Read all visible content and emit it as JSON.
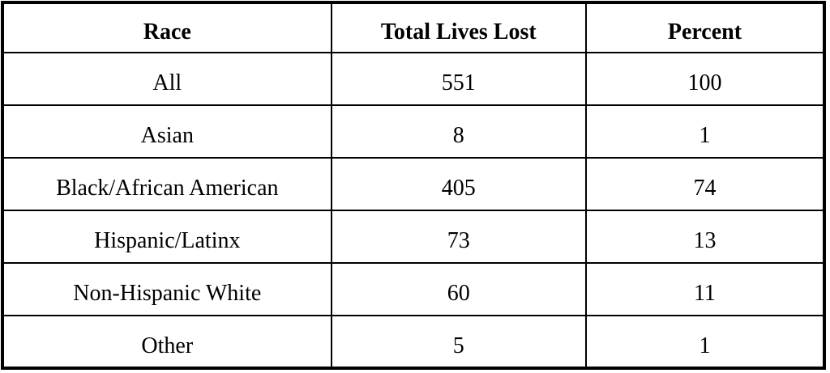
{
  "table": {
    "columns": [
      "Race",
      "Total Lives Lost",
      "Percent"
    ],
    "rows": [
      [
        "All",
        "551",
        "100"
      ],
      [
        "Asian",
        "8",
        "1"
      ],
      [
        "Black/African American",
        "405",
        "74"
      ],
      [
        "Hispanic/Latinx",
        "73",
        "13"
      ],
      [
        "Non-Hispanic White",
        "60",
        "11"
      ],
      [
        "Other",
        "5",
        "1"
      ]
    ]
  },
  "colors": {
    "border": "#000000",
    "background": "#ffffff",
    "text": "#000000"
  },
  "chart_data": {
    "type": "table",
    "title": "",
    "columns": [
      "Race",
      "Total Lives Lost",
      "Percent"
    ],
    "categories": [
      "All",
      "Asian",
      "Black/African American",
      "Hispanic/Latinx",
      "Non-Hispanic White",
      "Other"
    ],
    "series": [
      {
        "name": "Total Lives Lost",
        "values": [
          551,
          8,
          405,
          73,
          60,
          5
        ]
      },
      {
        "name": "Percent",
        "values": [
          100,
          1,
          74,
          13,
          11,
          1
        ]
      }
    ]
  }
}
